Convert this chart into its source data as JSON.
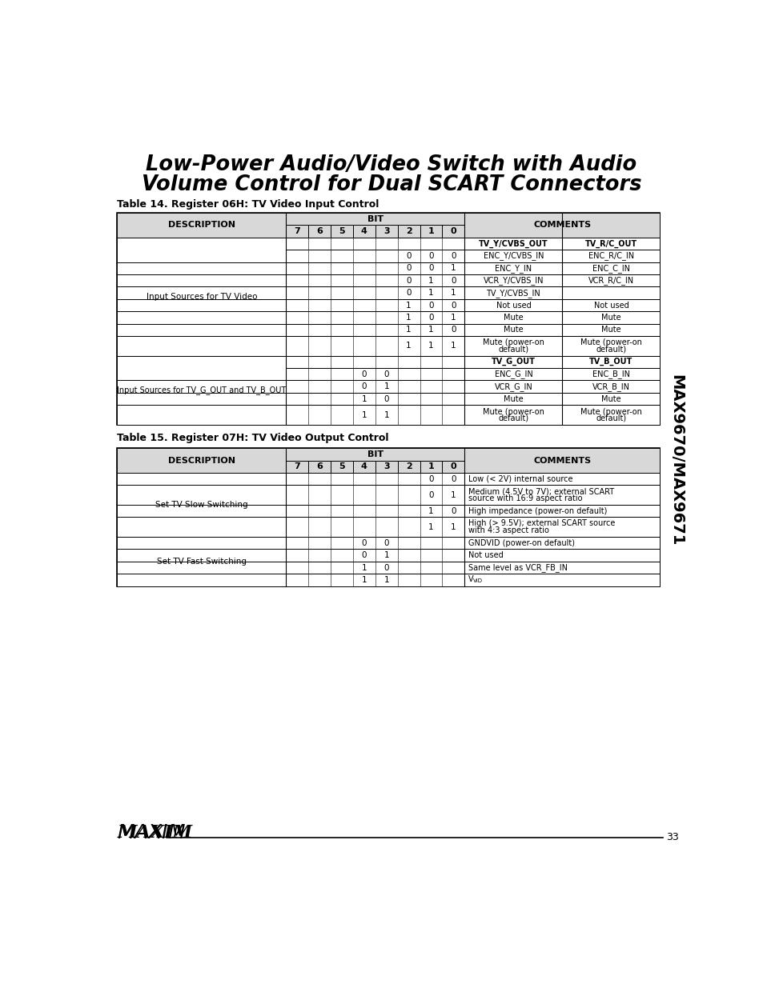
{
  "title_line1": "Low-Power Audio/Video Switch with Audio",
  "title_line2": "Volume Control for Dual SCART Connectors",
  "table14_title": "Table 14. Register 06H: TV Video Input Control",
  "table15_title": "Table 15. Register 07H: TV Video Output Control",
  "sidebar_text": "MAX9670/MAX9671",
  "page_number": "33",
  "bg_color": "#ffffff"
}
